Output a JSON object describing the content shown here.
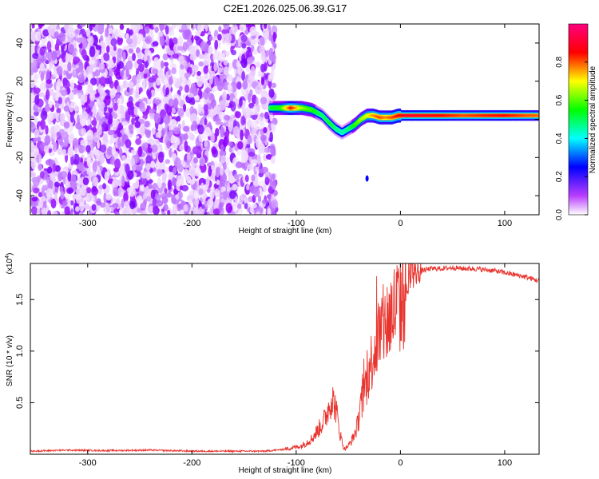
{
  "title": "C2E1.2026.025.06.39.G17",
  "chart_data": [
    {
      "type": "heatmap",
      "name": "spectrogram",
      "xlabel": "Height of straight line (km)",
      "ylabel": "Frequency (Hz)",
      "xlim": [
        -355,
        133
      ],
      "ylim": [
        -50,
        50
      ],
      "xticks": [
        -300,
        -200,
        -100,
        0,
        100
      ],
      "xtick_labels": [
        "-300",
        "-200",
        "-100",
        "0",
        "100"
      ],
      "yticks": [
        -40,
        -20,
        0,
        20,
        40
      ],
      "ytick_labels": [
        "-40",
        "-20",
        "0",
        "20",
        "40"
      ],
      "colorbar": {
        "label": "Normalized spectral amplitude",
        "range": [
          0,
          1
        ],
        "ticks": [
          0.0,
          0.2,
          0.4,
          0.6,
          0.8
        ],
        "tick_labels": [
          "0.0",
          "0.2",
          "0.4",
          "0.6",
          "0.8"
        ]
      },
      "noise_region_x": [
        -355,
        -120
      ],
      "ridge": {
        "x": [
          -125,
          -115,
          -105,
          -95,
          -85,
          -75,
          -68,
          -62,
          -56,
          -50,
          -44,
          -38,
          -32,
          -26,
          -20,
          -14,
          -8,
          -2,
          4,
          10,
          20,
          40,
          60,
          80,
          100,
          120,
          133
        ],
        "freq": [
          6,
          6,
          6,
          6,
          5,
          2,
          -2,
          -5,
          -7,
          -5,
          -3,
          0,
          2,
          2,
          1,
          1,
          1,
          2,
          2,
          2,
          2,
          2,
          2,
          2,
          2,
          2,
          2
        ],
        "amplitude": [
          0.55,
          0.6,
          0.95,
          0.7,
          0.6,
          0.5,
          0.55,
          0.5,
          0.45,
          0.5,
          0.6,
          0.7,
          0.75,
          0.85,
          0.9,
          0.85,
          0.9,
          0.95,
          0.97,
          0.98,
          0.97,
          0.95,
          0.9,
          0.93,
          0.95,
          0.9,
          0.88
        ]
      },
      "outlier_point": {
        "x": -32,
        "freq": -31,
        "amplitude": 0.2
      }
    },
    {
      "type": "line",
      "name": "snr",
      "xlabel": "Height of straight line (km)",
      "ylabel": "SNR (10 * v/v)",
      "y_multiplier_label": "(x10",
      "y_multiplier_exp": "4",
      "y_multiplier_close": ")",
      "xlim": [
        -355,
        133
      ],
      "ylim": [
        0,
        1.85
      ],
      "xticks": [
        -300,
        -200,
        -100,
        0,
        100
      ],
      "xtick_labels": [
        "-300",
        "-200",
        "-100",
        "0",
        "100"
      ],
      "yticks": [
        0.5,
        1.0,
        1.5
      ],
      "ytick_labels": [
        "0.5",
        "1.0",
        "1.5"
      ],
      "color": "#e8342e",
      "series": [
        {
          "name": "SNR",
          "x": [
            -355,
            -320,
            -280,
            -240,
            -200,
            -160,
            -130,
            -110,
            -95,
            -85,
            -78,
            -72,
            -66,
            -62,
            -58,
            -54,
            -50,
            -46,
            -42,
            -38,
            -34,
            -30,
            -27,
            -24,
            -21,
            -18,
            -15,
            -12,
            -9,
            -6,
            -3,
            0,
            5,
            10,
            15,
            20,
            30,
            40,
            50,
            60,
            70,
            80,
            90,
            100,
            110,
            120,
            133
          ],
          "y": [
            0.03,
            0.04,
            0.035,
            0.04,
            0.03,
            0.03,
            0.03,
            0.05,
            0.08,
            0.15,
            0.25,
            0.35,
            0.55,
            0.45,
            0.2,
            0.05,
            0.08,
            0.15,
            0.25,
            0.45,
            0.65,
            0.8,
            0.95,
            1.05,
            1.15,
            1.2,
            1.25,
            1.3,
            1.35,
            1.4,
            1.45,
            1.45,
            1.55,
            1.7,
            1.75,
            1.78,
            1.8,
            1.8,
            1.81,
            1.8,
            1.8,
            1.79,
            1.78,
            1.76,
            1.74,
            1.72,
            1.68
          ]
        }
      ]
    }
  ]
}
